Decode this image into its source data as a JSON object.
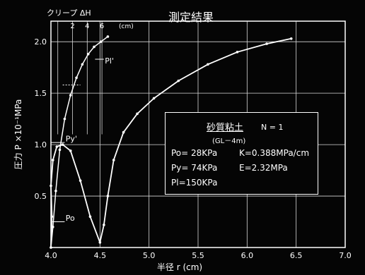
{
  "chart_data": {
    "type": "line",
    "title": "測定結果",
    "xlabel": "半径 r (cm)",
    "ylabel": "圧力 P ×10⁻¹MPa",
    "xlim": [
      4.0,
      7.0
    ],
    "ylim": [
      0.0,
      2.2
    ],
    "x_ticks": [
      "4.0",
      "4.5",
      "5.0",
      "5.5",
      "6.0",
      "6.5",
      "7.0"
    ],
    "y_ticks": [
      "0.5",
      "1.0",
      "1.5",
      "2.0"
    ],
    "grid": true,
    "creep_axis": {
      "label": "クリープ ΔH",
      "ticks": [
        "2",
        "4",
        "6"
      ],
      "unit": "(cm)"
    },
    "series": [
      {
        "name": "",
        "style": "creep",
        "x": [
          4.0,
          4.02,
          4.05,
          4.09,
          4.14,
          4.2,
          4.26,
          4.32,
          4.38,
          4.44,
          4.51,
          4.58
        ],
        "y": [
          0.0,
          0.2,
          0.55,
          0.95,
          1.25,
          1.48,
          1.65,
          1.78,
          1.88,
          1.95,
          2.0,
          2.05
        ]
      },
      {
        "name": "",
        "style": "main",
        "x": [
          4.0,
          4.01,
          4.0,
          4.02,
          4.06,
          4.12,
          4.2,
          4.3,
          4.4,
          4.5,
          4.54,
          4.58,
          4.64,
          4.74,
          4.88,
          5.05,
          5.3,
          5.6,
          5.9,
          6.2,
          6.45
        ],
        "y": [
          0.0,
          0.3,
          0.6,
          0.85,
          0.98,
          1.0,
          0.94,
          0.65,
          0.3,
          0.05,
          0.22,
          0.5,
          0.85,
          1.12,
          1.3,
          1.45,
          1.62,
          1.78,
          1.9,
          1.98,
          2.03
        ]
      }
    ],
    "annotations": [
      {
        "text": "Pl'",
        "x": 4.55,
        "y": 1.79
      },
      {
        "text": "Py'",
        "x": 4.15,
        "y": 1.03
      },
      {
        "text": "Po",
        "x": 4.15,
        "y": 0.26
      }
    ],
    "info_box": {
      "title": "砂質粘土",
      "n_label": "N = 1",
      "depth": "(GL－4m)",
      "po": "Po= 28KPa",
      "k": "K=0.388MPa/cm",
      "py": "Py= 74KPa",
      "e": "E=2.32MPa",
      "pl": "Pl=150KPa"
    }
  }
}
